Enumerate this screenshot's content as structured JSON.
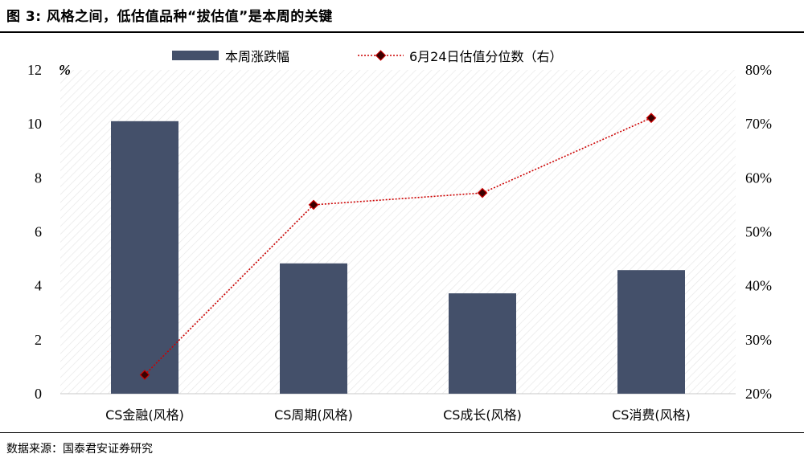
{
  "figure": {
    "title": "图 3:  风格之间，低估值品种“拔估值”是本周的关键",
    "source": "数据来源：国泰君安证券研究"
  },
  "chart_data": {
    "type": "bar",
    "categories": [
      "CS金融(风格)",
      "CS周期(风格)",
      "CS成长(风格)",
      "CS消费(风格)"
    ],
    "series": [
      {
        "name": "本周涨跌幅",
        "kind": "bar",
        "axis": "left",
        "color": "#44506a",
        "values": [
          10.1,
          4.83,
          3.72,
          4.58
        ]
      },
      {
        "name": "6月24日估值分位数（右）",
        "kind": "line",
        "axis": "right",
        "color": "#cc0000",
        "marker": "diamond",
        "values": [
          23.5,
          55.0,
          57.2,
          71.1
        ]
      }
    ],
    "y_left": {
      "min": 0,
      "max": 12,
      "ticks": [
        "0",
        "2",
        "4",
        "6",
        "8",
        "10",
        "12"
      ],
      "unit": "%"
    },
    "y_right": {
      "min": 20,
      "max": 80,
      "ticks": [
        "20%",
        "30%",
        "40%",
        "50%",
        "60%",
        "70%",
        "80%"
      ]
    },
    "legend": "top-center",
    "grid": false,
    "background": "diagonal-hatch"
  }
}
